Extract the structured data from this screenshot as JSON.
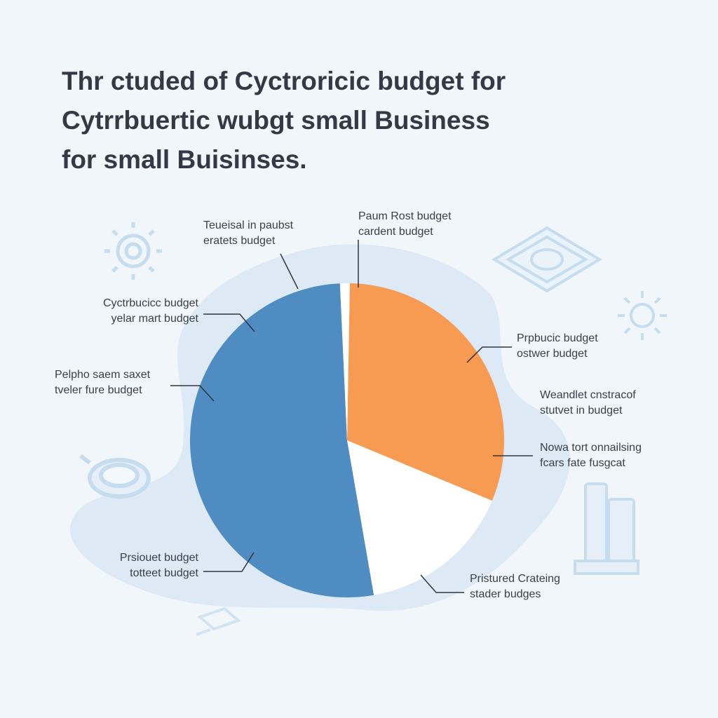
{
  "title": {
    "lines": [
      "Thr ctuded of Cyctroricic budget for",
      "Cytrrbuertic wubgt small Business",
      "for small Buisinses."
    ]
  },
  "chart_data": {
    "type": "pie",
    "title": "Thr ctuded of Cyctroricic budget for Cytrrbuertic wubgt small Business for small Buisinses.",
    "slices": [
      {
        "value_percent": 31,
        "color": "#f79a52"
      },
      {
        "value_percent": 16,
        "color": "#ffffff"
      },
      {
        "value_percent": 52,
        "color": "#4f8cc1"
      },
      {
        "value_percent": 1,
        "color": "#ffffff"
      }
    ],
    "labels": [
      {
        "lines": [
          "Teueisal in paubst",
          "eratets budget"
        ]
      },
      {
        "lines": [
          "Paum Rost budget",
          "cardent budget"
        ]
      },
      {
        "lines": [
          "Cyctrbucicc budget",
          "yelar mart budget"
        ]
      },
      {
        "lines": [
          "Prpbucic budget",
          "ostwer budget"
        ]
      },
      {
        "lines": [
          "Pelpho saem saxet",
          "tveler fure budget"
        ]
      },
      {
        "lines": [
          "Weandlet cnstracof",
          "stutvet in budget"
        ]
      },
      {
        "lines": [
          "Nowa tort onnailsing",
          "fcars fate fusgcat"
        ]
      },
      {
        "lines": [
          "Prsiouet budget",
          "totteet budget"
        ]
      },
      {
        "lines": [
          "Pristured Crateing",
          "stader budges"
        ]
      }
    ],
    "legend": "none",
    "grid": false
  },
  "colors": {
    "background": "#f1f6fb",
    "blob": "#d8e7f5",
    "orange": "#f79a52",
    "blue": "#4f8cc1"
  }
}
